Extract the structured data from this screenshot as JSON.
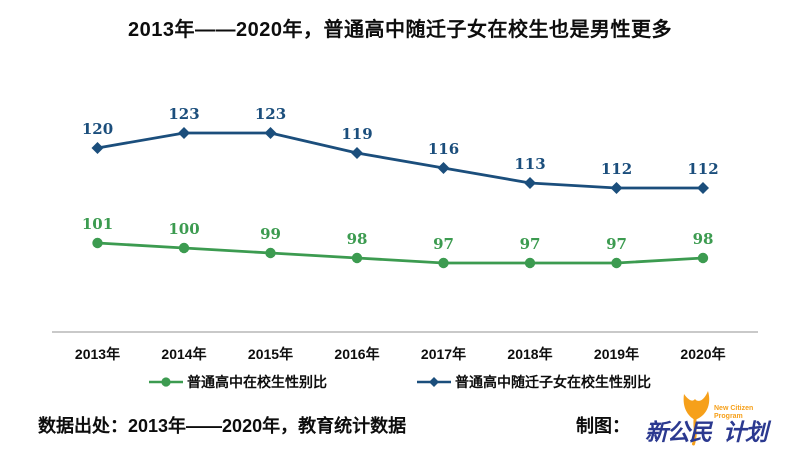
{
  "page": {
    "title": "2013年——2020年，普通高中随迁子女在校生也是男性更多",
    "footer": {
      "source_label": "数据出处：2013年——2020年，教育统计数据",
      "credit_label": "制图：",
      "logo": {
        "cn_part1": "新公民",
        "cn_part2": "计划",
        "en_line1": "New Citizen",
        "en_line2": "Program"
      }
    }
  },
  "colors": {
    "blue": "#1B4E7C",
    "green": "#3C9B50",
    "axis": "#C9C9C9",
    "logo_blue": "#2B3990",
    "logo_orange": "#F6A01A"
  },
  "chart_data": {
    "type": "line",
    "title": "2013年——2020年，普通高中随迁子女在校生也是男性更多",
    "categories": [
      "2013年",
      "2014年",
      "2015年",
      "2016年",
      "2017年",
      "2018年",
      "2019年",
      "2020年"
    ],
    "series": [
      {
        "name": "普通高中在校生性别比",
        "color": "#3C9B50",
        "marker": "circle",
        "values": [
          101,
          100,
          99,
          98,
          97,
          97,
          97,
          98
        ]
      },
      {
        "name": "普通高中随迁子女在校生性别比",
        "color": "#1B4E7C",
        "marker": "diamond",
        "values": [
          120,
          123,
          123,
          119,
          116,
          113,
          112,
          112
        ]
      }
    ],
    "xlabel": "",
    "ylabel": "",
    "ylim": [
      90,
      130
    ],
    "grid": false,
    "legend_position": "bottom",
    "data_labels": true
  }
}
